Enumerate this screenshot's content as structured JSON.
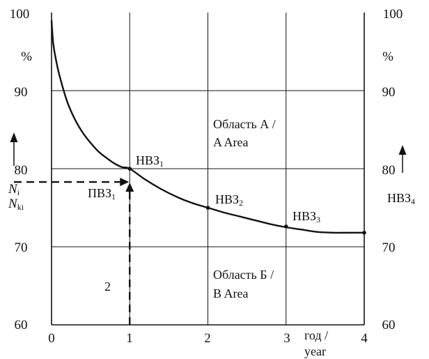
{
  "chart_data": {
    "type": "line",
    "title": "",
    "xlim": [
      0,
      4
    ],
    "ylim": [
      60,
      100
    ],
    "x_ticks": [
      "0",
      "1",
      "2",
      "3",
      "4"
    ],
    "y_ticks_left": [
      "60",
      "70",
      "80",
      "90",
      "100"
    ],
    "y_ticks_right": [
      "60",
      "70",
      "80",
      "90",
      "100"
    ],
    "unit_left": "%",
    "unit_right": "%",
    "xlabel_line1": "год /",
    "xlabel_line2": "year",
    "ylabel_left_line1": "N",
    "ylabel_left_sub1": "i",
    "ylabel_left_line2": "N",
    "ylabel_left_sub2": "ki",
    "ylabel_right": "НВЗ",
    "ylabel_right_sub": "4",
    "grid": true,
    "series": [
      {
        "x": [
          0,
          0.02,
          0.05,
          0.1,
          0.2,
          0.3,
          0.4,
          0.5,
          0.6,
          0.7,
          0.8,
          0.9,
          1.0,
          1.2,
          1.4,
          1.6,
          1.8,
          2.0,
          2.2,
          2.4,
          2.6,
          2.8,
          3.0,
          3.2,
          3.4,
          3.6,
          3.8,
          4.0
        ],
        "y": [
          99.0,
          96.2,
          94.3,
          92.0,
          88.6,
          86.3,
          84.6,
          83.3,
          82.2,
          81.4,
          80.7,
          80.2,
          80.0,
          78.6,
          77.4,
          76.4,
          75.6,
          75.0,
          74.4,
          73.9,
          73.4,
          72.9,
          72.5,
          72.2,
          71.9,
          71.8,
          71.8,
          71.8
        ]
      }
    ],
    "points": [
      {
        "label": "НВЗ",
        "sub": "1",
        "x": 1,
        "y": 80
      },
      {
        "label": "НВЗ",
        "sub": "2",
        "x": 2,
        "y": 75
      },
      {
        "label": "НВЗ",
        "sub": "3",
        "x": 3,
        "y": 72.6
      },
      {
        "label": "",
        "sub": "",
        "x": 4,
        "y": 71.8
      }
    ],
    "pvz": {
      "label": "ПВЗ",
      "sub": "1",
      "x": 1,
      "y": 78.3
    },
    "annotations": {
      "area_a_line1": "Область А /",
      "area_a_line2": "A Area",
      "area_b_line1": "Область Б /",
      "area_b_line2": "B Area",
      "marker_2": "2"
    }
  }
}
